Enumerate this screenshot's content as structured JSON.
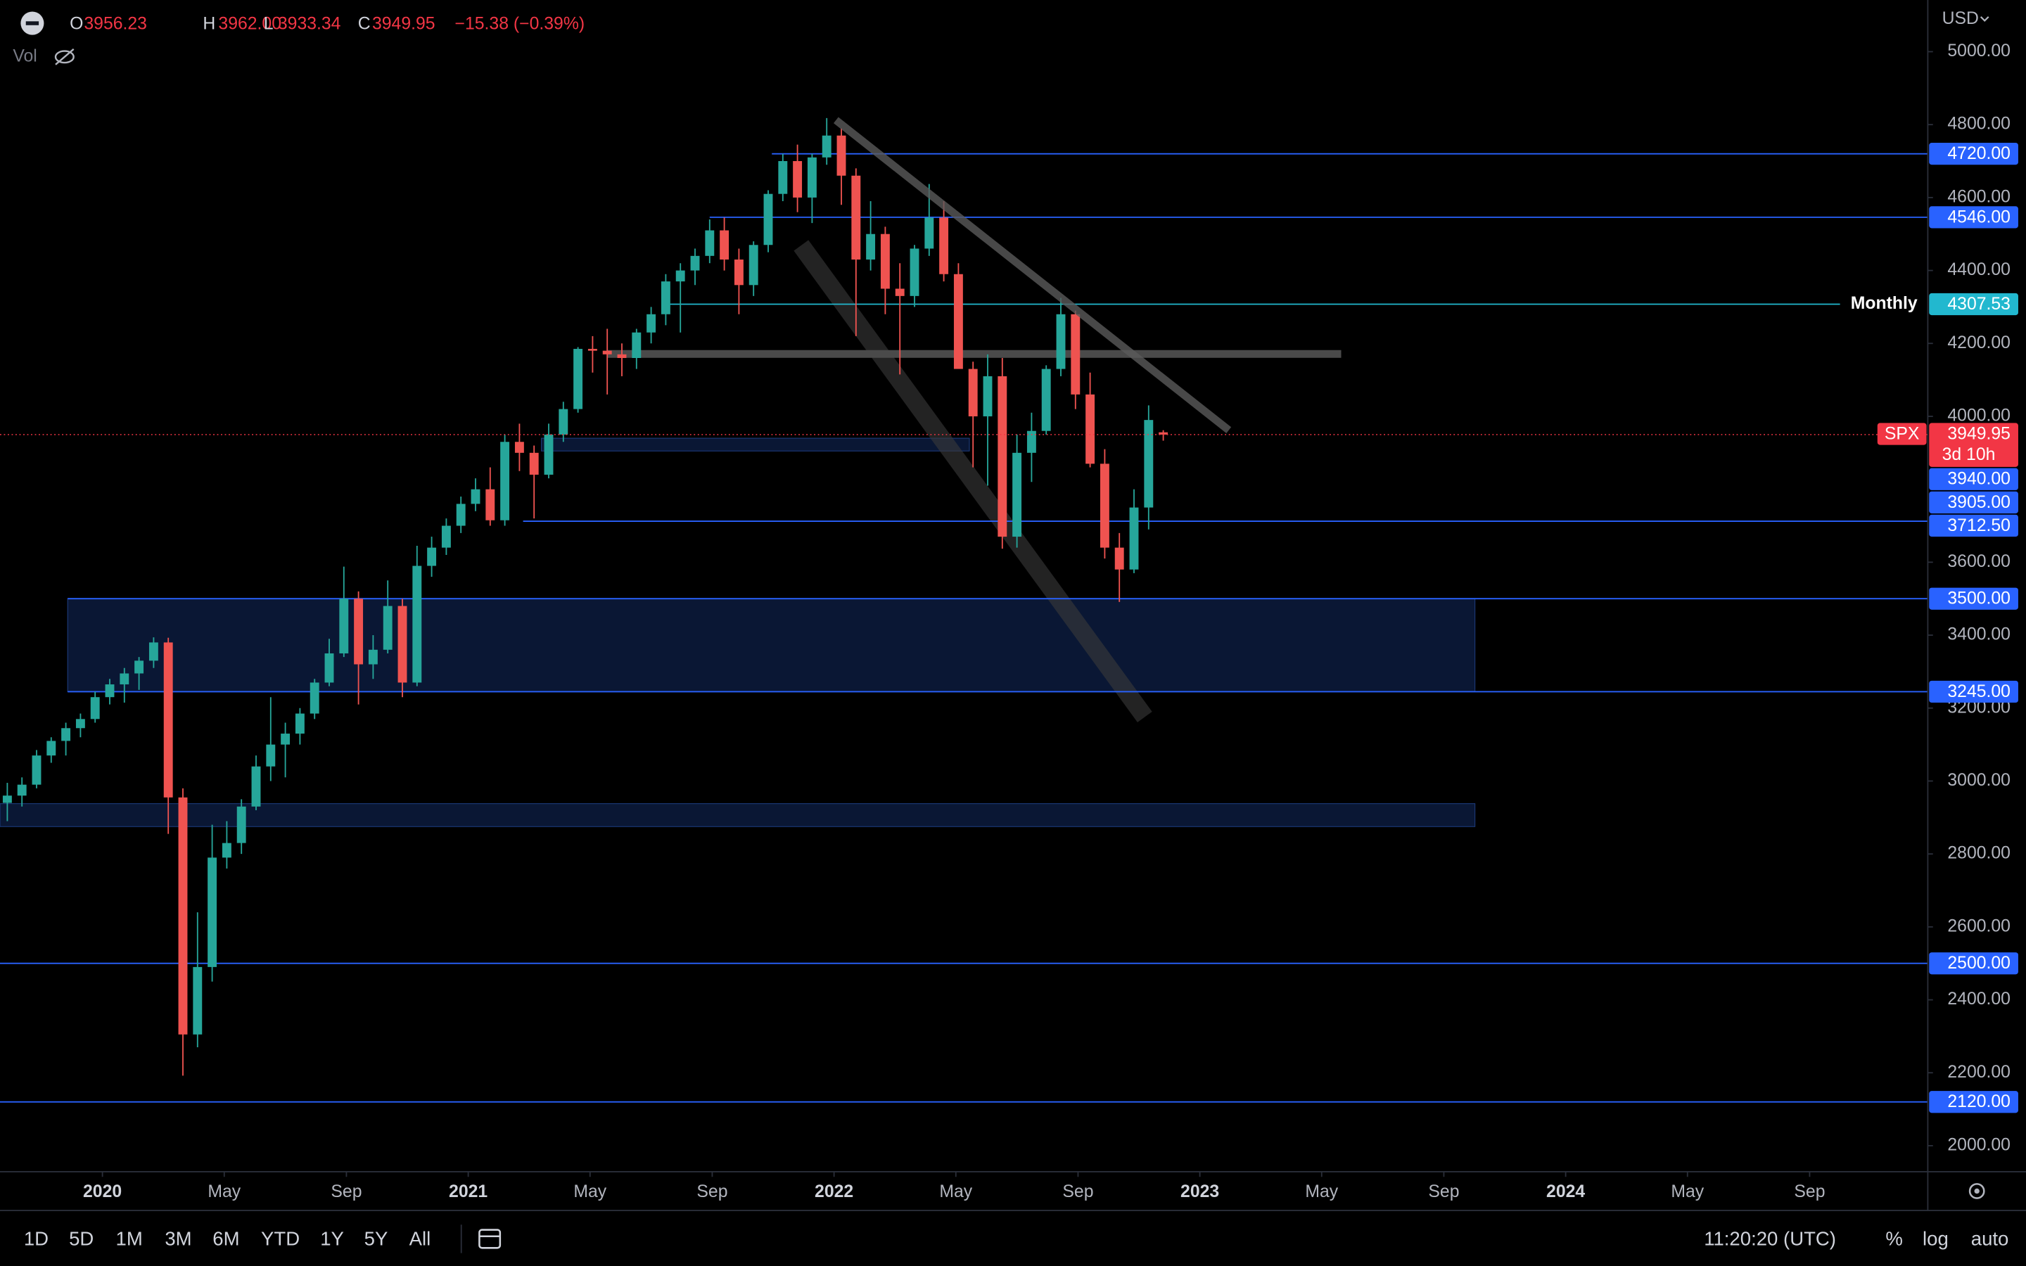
{
  "chart_data": {
    "type": "candlestick",
    "legend": {
      "items": [
        {
          "key": "O",
          "value": "3956.23"
        },
        {
          "key": "H",
          "value": "3962.00"
        },
        {
          "key": "L",
          "value": "3933.34"
        },
        {
          "key": "C",
          "value": "3949.95"
        }
      ],
      "change": "−15.38 (−0.39%)",
      "volume": "Vol"
    },
    "currency": "USD",
    "symbol": "SPX",
    "countdown": "3d 10h",
    "up_color": "#26a69a",
    "down_color": "#ef5350",
    "xlim": [
      2019.72,
      2024.99
    ],
    "xticks": [
      {
        "value": 2020,
        "label": "2020"
      },
      {
        "value": 2020.333,
        "label": "May"
      },
      {
        "value": 2020.667,
        "label": "Sep"
      },
      {
        "value": 2021,
        "label": "2021"
      },
      {
        "value": 2021.333,
        "label": "May"
      },
      {
        "value": 2021.667,
        "label": "Sep"
      },
      {
        "value": 2022,
        "label": "2022"
      },
      {
        "value": 2022.333,
        "label": "May"
      },
      {
        "value": 2022.667,
        "label": "Sep"
      },
      {
        "value": 2023,
        "label": "2023"
      },
      {
        "value": 2023.333,
        "label": "May"
      },
      {
        "value": 2023.667,
        "label": "Sep"
      },
      {
        "value": 2024,
        "label": "2024"
      },
      {
        "value": 2024.333,
        "label": "May"
      },
      {
        "value": 2024.667,
        "label": "Sep"
      }
    ],
    "ylim": [
      1928.7,
      5141.7
    ],
    "yticks": [
      {
        "value": 5000,
        "label": "5000.00"
      },
      {
        "value": 4800,
        "label": "4800.00"
      },
      {
        "value": 4600,
        "label": "4600.00"
      },
      {
        "value": 4400,
        "label": "4400.00"
      },
      {
        "value": 4200,
        "label": "4200.00"
      },
      {
        "value": 4000,
        "label": "4000.00"
      },
      {
        "value": 3600,
        "label": "3600.00"
      },
      {
        "value": 3400,
        "label": "3400.00"
      },
      {
        "value": 3200,
        "label": "3200.00"
      },
      {
        "value": 3000,
        "label": "3000.00"
      },
      {
        "value": 2800,
        "label": "2800.00"
      },
      {
        "value": 2600,
        "label": "2600.00"
      },
      {
        "value": 2400,
        "label": "2400.00"
      },
      {
        "value": 2200,
        "label": "2200.00"
      },
      {
        "value": 2000,
        "label": "2000.00"
      }
    ],
    "x": [
      2019.74,
      2019.78,
      2019.82,
      2019.86,
      2019.9,
      2019.94,
      2019.98,
      2020.02,
      2020.06,
      2020.1,
      2020.14,
      2020.18,
      2020.22,
      2020.26,
      2020.3,
      2020.34,
      2020.38,
      2020.42,
      2020.46,
      2020.5,
      2020.54,
      2020.58,
      2020.62,
      2020.66,
      2020.7,
      2020.74,
      2020.78,
      2020.82,
      2020.86,
      2020.9,
      2020.94,
      2020.98,
      2021.02,
      2021.06,
      2021.1,
      2021.14,
      2021.18,
      2021.22,
      2021.26,
      2021.3,
      2021.34,
      2021.38,
      2021.42,
      2021.46,
      2021.5,
      2021.54,
      2021.58,
      2021.62,
      2021.66,
      2021.7,
      2021.74,
      2021.78,
      2021.82,
      2021.86,
      2021.9,
      2021.94,
      2021.98,
      2022.02,
      2022.06,
      2022.1,
      2022.14,
      2022.18,
      2022.22,
      2022.26,
      2022.3,
      2022.34,
      2022.38,
      2022.42,
      2022.46,
      2022.5,
      2022.54,
      2022.58,
      2022.62,
      2022.66,
      2022.7,
      2022.74,
      2022.78,
      2022.82,
      2022.86,
      2022.9
    ],
    "candles": [
      [
        2940,
        2995,
        2890,
        2960
      ],
      [
        2960,
        3010,
        2930,
        2990
      ],
      [
        2990,
        3085,
        2980,
        3070
      ],
      [
        3070,
        3120,
        3050,
        3110
      ],
      [
        3110,
        3160,
        3070,
        3145
      ],
      [
        3145,
        3185,
        3120,
        3170
      ],
      [
        3170,
        3245,
        3160,
        3230
      ],
      [
        3230,
        3280,
        3210,
        3265
      ],
      [
        3265,
        3310,
        3215,
        3295
      ],
      [
        3295,
        3340,
        3250,
        3330
      ],
      [
        3330,
        3394,
        3310,
        3380
      ],
      [
        3380,
        3393,
        2855,
        2955
      ],
      [
        2955,
        2980,
        2192,
        2305
      ],
      [
        2305,
        2640,
        2270,
        2490
      ],
      [
        2490,
        2880,
        2450,
        2790
      ],
      [
        2790,
        2890,
        2760,
        2830
      ],
      [
        2830,
        2950,
        2800,
        2930
      ],
      [
        2930,
        3070,
        2920,
        3040
      ],
      [
        3040,
        3230,
        3000,
        3100
      ],
      [
        3100,
        3160,
        3010,
        3130
      ],
      [
        3130,
        3200,
        3100,
        3185
      ],
      [
        3185,
        3280,
        3170,
        3270
      ],
      [
        3270,
        3390,
        3260,
        3350
      ],
      [
        3350,
        3588,
        3340,
        3500
      ],
      [
        3500,
        3520,
        3210,
        3320
      ],
      [
        3320,
        3400,
        3280,
        3360
      ],
      [
        3360,
        3550,
        3350,
        3480
      ],
      [
        3480,
        3500,
        3230,
        3270
      ],
      [
        3270,
        3645,
        3260,
        3590
      ],
      [
        3590,
        3670,
        3560,
        3640
      ],
      [
        3640,
        3720,
        3620,
        3700
      ],
      [
        3700,
        3780,
        3680,
        3760
      ],
      [
        3760,
        3830,
        3740,
        3800
      ],
      [
        3800,
        3860,
        3700,
        3715
      ],
      [
        3715,
        3950,
        3700,
        3930
      ],
      [
        3930,
        3980,
        3850,
        3900
      ],
      [
        3900,
        3920,
        3720,
        3840
      ],
      [
        3840,
        3980,
        3830,
        3950
      ],
      [
        3950,
        4040,
        3930,
        4020
      ],
      [
        4020,
        4190,
        4010,
        4185
      ],
      [
        4185,
        4220,
        4120,
        4180
      ],
      [
        4180,
        4240,
        4060,
        4170
      ],
      [
        4170,
        4200,
        4110,
        4160
      ],
      [
        4160,
        4240,
        4130,
        4230
      ],
      [
        4230,
        4300,
        4200,
        4280
      ],
      [
        4280,
        4390,
        4250,
        4370
      ],
      [
        4370,
        4420,
        4230,
        4400
      ],
      [
        4400,
        4460,
        4360,
        4440
      ],
      [
        4440,
        4540,
        4420,
        4510
      ],
      [
        4510,
        4545,
        4400,
        4430
      ],
      [
        4430,
        4460,
        4280,
        4360
      ],
      [
        4360,
        4480,
        4330,
        4470
      ],
      [
        4470,
        4620,
        4450,
        4610
      ],
      [
        4610,
        4720,
        4590,
        4700
      ],
      [
        4700,
        4745,
        4560,
        4600
      ],
      [
        4600,
        4720,
        4530,
        4710
      ],
      [
        4710,
        4818,
        4690,
        4770
      ],
      [
        4770,
        4790,
        4580,
        4660
      ],
      [
        4660,
        4680,
        4220,
        4430
      ],
      [
        4430,
        4590,
        4400,
        4500
      ],
      [
        4500,
        4520,
        4280,
        4350
      ],
      [
        4350,
        4420,
        4115,
        4330
      ],
      [
        4330,
        4470,
        4300,
        4460
      ],
      [
        4460,
        4637,
        4440,
        4545
      ],
      [
        4545,
        4590,
        4370,
        4390
      ],
      [
        4390,
        4420,
        4130,
        4130
      ],
      [
        4130,
        4150,
        3860,
        4000
      ],
      [
        4000,
        4170,
        3810,
        4110
      ],
      [
        4110,
        4160,
        3637,
        3670
      ],
      [
        3670,
        3950,
        3640,
        3900
      ],
      [
        3900,
        4010,
        3820,
        3960
      ],
      [
        3960,
        4140,
        3950,
        4130
      ],
      [
        4130,
        4325,
        4110,
        4280
      ],
      [
        4280,
        4290,
        4020,
        4060
      ],
      [
        4060,
        4120,
        3860,
        3870
      ],
      [
        3870,
        3910,
        3610,
        3640
      ],
      [
        3640,
        3680,
        3491,
        3580
      ],
      [
        3580,
        3800,
        3570,
        3750
      ],
      [
        3750,
        4030,
        3690,
        3990
      ],
      [
        3956.23,
        3962,
        3933.34,
        3949.95
      ]
    ],
    "levels": [
      {
        "value": 4720,
        "label": "4720.00",
        "color": "#2962ff",
        "line": true,
        "start": 2021.83
      },
      {
        "value": 4546,
        "label": "4546.00",
        "color": "#2962ff",
        "line": true,
        "start": 2021.66
      },
      {
        "value": 4307.53,
        "label": "4307.53",
        "color": "#22b8cf",
        "line": true,
        "start": 2021.53,
        "end": 2024.75,
        "name": "Monthly"
      },
      {
        "value": 3940,
        "label": "3940.00",
        "color": "#2962ff",
        "line": false
      },
      {
        "value": 3905,
        "label": "3905.00",
        "color": "#2962ff",
        "line": false
      },
      {
        "value": 3712.5,
        "label": "3712.50",
        "color": "#2962ff",
        "line": true,
        "start": 2021.15
      },
      {
        "value": 3500,
        "label": "3500.00",
        "color": "#2962ff",
        "line": true,
        "start": 2019.905
      },
      {
        "value": 3245,
        "label": "3245.00",
        "color": "#2962ff",
        "line": true,
        "start": 2019.905
      },
      {
        "value": 2500,
        "label": "2500.00",
        "color": "#2962ff",
        "line": true
      },
      {
        "value": 2120,
        "label": "2120.00",
        "color": "#2962ff",
        "line": true
      }
    ],
    "zones": [
      {
        "low": 3905,
        "high": 3940,
        "start": 2021.2,
        "end": 2022.37
      },
      {
        "low": 3245,
        "high": 3500,
        "start": 2019.905,
        "end": 2023.752
      },
      {
        "low": 2875,
        "high": 2938,
        "start": 2019.72,
        "end": 2023.752
      }
    ]
  },
  "toolbar": {
    "ranges": [
      "1D",
      "5D",
      "1M",
      "3M",
      "6M",
      "YTD",
      "1Y",
      "5Y",
      "All"
    ],
    "clock": "11:20:20 (UTC)",
    "options": [
      "%",
      "log",
      "auto"
    ]
  }
}
